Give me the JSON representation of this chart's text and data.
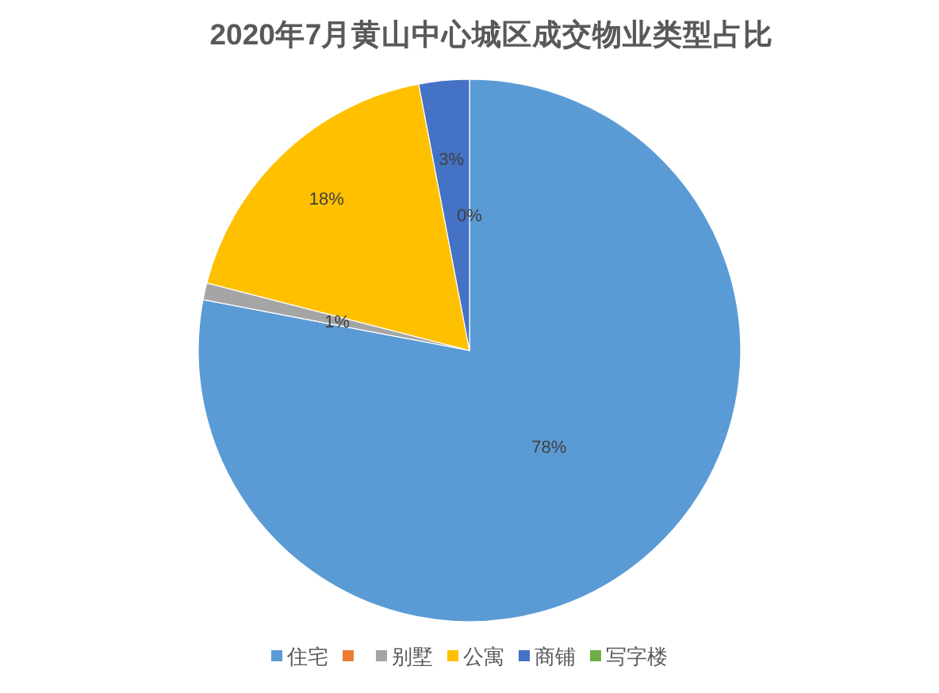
{
  "chart_data": {
    "type": "pie",
    "title": "2020年7月黄山中心城区成交物业类型占比",
    "categories": [
      "住宅",
      null,
      "别墅",
      "公寓",
      "商铺",
      "写字楼"
    ],
    "values": [
      78,
      0,
      1,
      18,
      3,
      0
    ],
    "colors": [
      "#5b9bd5",
      "#ed7d31",
      "#a5a5a5",
      "#ffc000",
      "#4472c4",
      "#70ad47"
    ],
    "value_labels": [
      "78%",
      null,
      "1%",
      "18%",
      "3%",
      "0%"
    ],
    "legend": "bottom"
  }
}
